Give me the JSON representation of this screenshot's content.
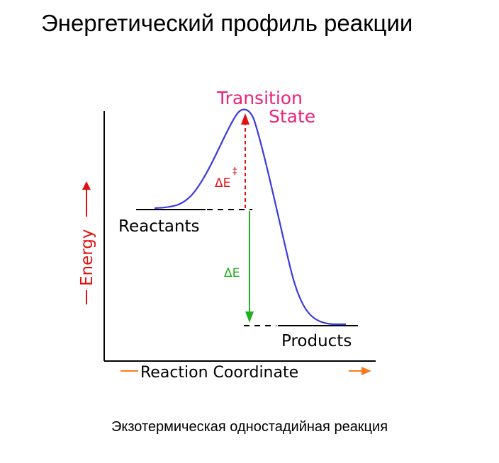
{
  "title": "Энергетический профиль реакции",
  "caption": "Экзотермическая одностадийная реакция",
  "diagram": {
    "transition_state_line1": "Transition",
    "transition_state_line2": "State",
    "reactants_label": "Reactants",
    "products_label": "Products",
    "activation_energy_label": "ΔE",
    "activation_energy_symbol": "‡",
    "reaction_energy_label": "ΔE",
    "y_axis_label": "Energy",
    "x_axis_label": "Reaction Coordinate",
    "colors": {
      "curve": "#3a3adf",
      "transition_state": "#e8247c",
      "activation_arrow": "#e01010",
      "reaction_arrow": "#20b020",
      "axis_arrows": "#e01010",
      "x_axis_arrow": "#ff7a1a",
      "axes": "#000000"
    }
  }
}
